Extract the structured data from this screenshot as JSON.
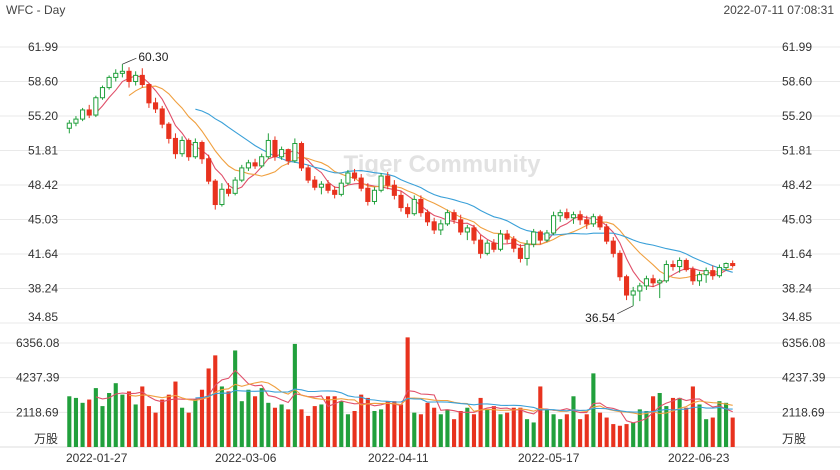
{
  "header": {
    "title": "WFC - Day",
    "timestamp": "2022-07-11 07:08:31"
  },
  "watermark": "Tiger Community",
  "colors": {
    "up": "#21a03c",
    "down": "#e8321e",
    "ma_fast": "#e0506a",
    "ma_mid": "#f0a040",
    "ma_slow": "#3aa0d8",
    "grid": "#e9e9e9"
  },
  "chart_data": [
    {
      "type": "candlestick",
      "price_ticks": [
        "61.99",
        "58.60",
        "55.20",
        "51.81",
        "48.42",
        "45.03",
        "41.64",
        "38.24",
        "34.85"
      ],
      "ylim": [
        34.85,
        61.99
      ],
      "x_tick_labels": [
        "2022-01-27",
        "2022-03-06",
        "2022-04-11",
        "2022-05-17",
        "2022-06-23"
      ],
      "annotations": [
        {
          "label": "60.30",
          "value": 60.3,
          "kind": "high"
        },
        {
          "label": "36.54",
          "value": 36.54,
          "kind": "low"
        }
      ],
      "moving_average_periods": [
        5,
        10,
        20
      ],
      "candles": [
        [
          54.0,
          54.8,
          53.5,
          54.5
        ],
        [
          54.5,
          55.2,
          54.2,
          54.9
        ],
        [
          54.9,
          56.0,
          54.7,
          55.8
        ],
        [
          55.8,
          56.3,
          55.0,
          55.3
        ],
        [
          55.3,
          57.2,
          55.1,
          57.0
        ],
        [
          57.0,
          58.2,
          56.8,
          58.0
        ],
        [
          58.0,
          59.2,
          57.8,
          59.0
        ],
        [
          59.0,
          59.8,
          58.6,
          59.4
        ],
        [
          59.4,
          60.3,
          59.0,
          59.6
        ],
        [
          59.6,
          60.0,
          58.0,
          58.6
        ],
        [
          58.6,
          59.6,
          58.2,
          59.2
        ],
        [
          59.2,
          59.9,
          58.0,
          58.3
        ],
        [
          58.3,
          58.4,
          56.0,
          56.5
        ],
        [
          56.5,
          57.0,
          55.5,
          55.9
        ],
        [
          55.9,
          56.2,
          54.0,
          54.4
        ],
        [
          54.4,
          54.6,
          52.5,
          53.0
        ],
        [
          53.0,
          53.5,
          51.0,
          51.5
        ],
        [
          51.5,
          53.2,
          51.2,
          52.8
        ],
        [
          52.8,
          53.0,
          50.8,
          51.2
        ],
        [
          51.2,
          53.0,
          51.0,
          52.6
        ],
        [
          52.6,
          52.8,
          50.5,
          51.0
        ],
        [
          51.0,
          51.4,
          48.5,
          48.8
        ],
        [
          48.8,
          49.0,
          46.0,
          46.5
        ],
        [
          46.5,
          48.6,
          46.3,
          48.0
        ],
        [
          48.0,
          48.6,
          47.3,
          47.6
        ],
        [
          47.6,
          49.2,
          47.4,
          48.9
        ],
        [
          48.9,
          50.4,
          48.7,
          50.1
        ],
        [
          50.1,
          50.9,
          49.8,
          50.6
        ],
        [
          50.6,
          51.0,
          50.0,
          50.3
        ],
        [
          50.3,
          51.5,
          50.1,
          51.2
        ],
        [
          51.2,
          53.5,
          51.0,
          52.8
        ],
        [
          52.8,
          53.2,
          50.8,
          51.2
        ],
        [
          51.2,
          52.2,
          50.9,
          51.9
        ],
        [
          51.9,
          52.0,
          50.4,
          50.8
        ],
        [
          50.8,
          53.0,
          50.6,
          52.5
        ],
        [
          52.5,
          52.7,
          49.8,
          50.1
        ],
        [
          50.1,
          50.4,
          48.6,
          48.9
        ],
        [
          48.9,
          49.3,
          47.9,
          48.2
        ],
        [
          48.2,
          48.8,
          47.5,
          48.5
        ],
        [
          48.5,
          48.9,
          47.6,
          47.9
        ],
        [
          47.9,
          48.3,
          47.1,
          47.5
        ],
        [
          47.5,
          49.0,
          47.3,
          48.6
        ],
        [
          48.6,
          49.9,
          48.4,
          49.6
        ],
        [
          49.6,
          50.0,
          48.8,
          49.1
        ],
        [
          49.1,
          49.5,
          47.8,
          48.1
        ],
        [
          48.1,
          48.6,
          46.4,
          46.8
        ],
        [
          46.8,
          48.2,
          46.5,
          47.9
        ],
        [
          47.9,
          49.6,
          47.7,
          49.3
        ],
        [
          49.3,
          49.7,
          48.0,
          48.4
        ],
        [
          48.4,
          48.9,
          47.0,
          47.4
        ],
        [
          47.4,
          47.8,
          45.8,
          46.2
        ],
        [
          46.2,
          46.6,
          45.2,
          45.6
        ],
        [
          45.6,
          47.4,
          45.4,
          47.0
        ],
        [
          47.0,
          47.4,
          45.3,
          45.7
        ],
        [
          45.7,
          46.0,
          44.4,
          44.8
        ],
        [
          44.8,
          45.2,
          43.6,
          44.0
        ],
        [
          44.0,
          45.0,
          43.5,
          44.6
        ],
        [
          44.6,
          46.0,
          44.4,
          45.7
        ],
        [
          45.7,
          46.0,
          44.6,
          45.0
        ],
        [
          45.0,
          45.5,
          43.5,
          43.8
        ],
        [
          43.8,
          44.5,
          43.0,
          44.2
        ],
        [
          44.2,
          44.5,
          42.6,
          43.0
        ],
        [
          43.0,
          43.5,
          41.2,
          41.7
        ],
        [
          41.7,
          43.0,
          41.5,
          42.7
        ],
        [
          42.7,
          43.1,
          41.8,
          42.1
        ],
        [
          42.1,
          44.0,
          41.9,
          43.6
        ],
        [
          43.6,
          44.0,
          42.7,
          43.1
        ],
        [
          43.1,
          43.4,
          41.8,
          42.2
        ],
        [
          42.2,
          42.6,
          40.8,
          41.2
        ],
        [
          41.2,
          43.0,
          40.5,
          42.6
        ],
        [
          42.6,
          44.1,
          42.3,
          43.8
        ],
        [
          43.8,
          44.0,
          42.6,
          43.0
        ],
        [
          43.0,
          44.0,
          42.8,
          43.7
        ],
        [
          43.7,
          45.8,
          43.5,
          45.4
        ],
        [
          45.4,
          46.0,
          44.8,
          45.7
        ],
        [
          45.7,
          46.1,
          45.0,
          45.2
        ],
        [
          45.2,
          45.8,
          44.6,
          45.5
        ],
        [
          45.5,
          45.9,
          44.5,
          45.0
        ],
        [
          45.0,
          45.4,
          44.1,
          44.6
        ],
        [
          44.6,
          45.6,
          44.3,
          45.3
        ],
        [
          45.3,
          45.5,
          44.0,
          44.3
        ],
        [
          44.3,
          44.6,
          42.6,
          42.9
        ],
        [
          42.9,
          43.3,
          41.3,
          41.7
        ],
        [
          41.7,
          42.0,
          39.0,
          39.4
        ],
        [
          39.4,
          39.6,
          37.1,
          37.6
        ],
        [
          37.6,
          38.4,
          36.54,
          38.0
        ],
        [
          38.0,
          38.8,
          37.0,
          38.5
        ],
        [
          38.5,
          39.5,
          38.1,
          39.2
        ],
        [
          39.2,
          39.6,
          38.4,
          38.8
        ],
        [
          38.8,
          39.2,
          37.3,
          39.0
        ],
        [
          39.0,
          41.0,
          38.8,
          40.6
        ],
        [
          40.6,
          41.0,
          40.0,
          40.4
        ],
        [
          40.4,
          41.3,
          39.8,
          41.0
        ],
        [
          41.0,
          41.2,
          39.9,
          40.1
        ],
        [
          40.1,
          40.4,
          38.6,
          39.0
        ],
        [
          39.0,
          39.9,
          38.5,
          39.6
        ],
        [
          39.6,
          40.3,
          38.8,
          40.0
        ],
        [
          40.0,
          40.5,
          39.1,
          39.5
        ],
        [
          39.5,
          40.6,
          39.3,
          40.3
        ],
        [
          40.3,
          40.8,
          40.0,
          40.7
        ],
        [
          40.7,
          41.0,
          40.3,
          40.5
        ]
      ]
    },
    {
      "type": "bar",
      "name": "volume",
      "volume_ticks": [
        "6356.08",
        "4237.39",
        "2118.69"
      ],
      "unit_label": "万股",
      "ylim": [
        0,
        6356.08
      ],
      "volumes": [
        3100,
        3000,
        2700,
        2900,
        3600,
        2500,
        3300,
        3900,
        3200,
        3400,
        2600,
        3700,
        2500,
        2100,
        2900,
        3200,
        4000,
        2400,
        2100,
        2900,
        3500,
        4800,
        5600,
        3700,
        3400,
        5900,
        2800,
        3500,
        3100,
        3600,
        2700,
        2400,
        2600,
        2300,
        6300,
        2300,
        1900,
        2500,
        2600,
        3100,
        3100,
        2800,
        2000,
        2200,
        3200,
        3000,
        2200,
        2300,
        2800,
        2800,
        2600,
        6700,
        2100,
        2000,
        2700,
        2400,
        2000,
        2300,
        1700,
        2200,
        2400,
        2000,
        3000,
        2300,
        2500,
        2000,
        2100,
        2400,
        2400,
        1700,
        1500,
        3700,
        2300,
        2000,
        1700,
        2000,
        3100,
        1700,
        2000,
        4500,
        2100,
        1800,
        1400,
        1300,
        1400,
        1500,
        2300,
        2200,
        3100,
        3300,
        2500,
        3000,
        3000,
        2400,
        3700,
        2600,
        1700,
        1800,
        2800,
        2700,
        1800
      ]
    }
  ]
}
